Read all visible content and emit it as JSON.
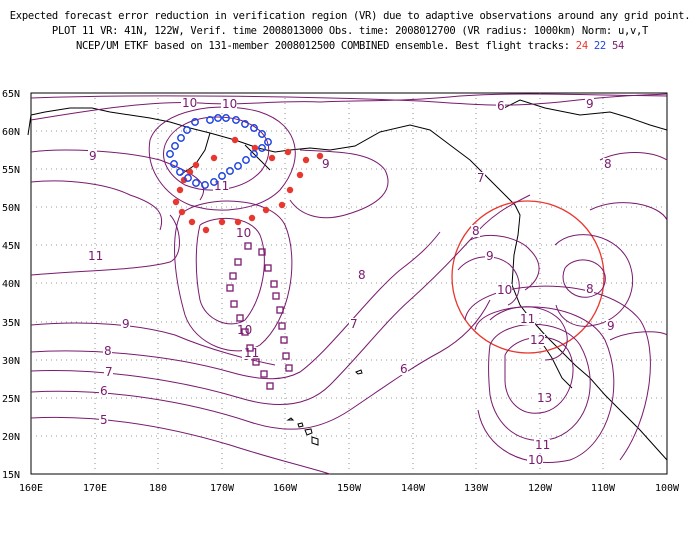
{
  "header": {
    "line1": "Expected forecast error reduction in verification region (VR) due to adaptive observations around any grid point.",
    "line2": "PLOT 11 VR: 41N, 122W, Verif. time 2008013000 Obs. time: 2008012700 (VR radius: 1000km) Norm: u,v,T",
    "line3_prefix": "NCEP/UM ETKF based on 131-member 2008012500 COMBINED ensemble.  Best flight tracks:",
    "track_red": "24",
    "track_blue": "22",
    "track_purple": "54"
  },
  "map": {
    "x_ticks": [
      "160E",
      "170E",
      "180",
      "170W",
      "160W",
      "150W",
      "140W",
      "130W",
      "120W",
      "110W",
      "100W"
    ],
    "y_ticks": [
      "65N",
      "60N",
      "55N",
      "50N",
      "45N",
      "40N",
      "35N",
      "30N",
      "25N",
      "20N",
      "15N"
    ],
    "contour_color": "#7a1a6e",
    "contour_labels": [
      "10",
      "9",
      "11",
      "10",
      "11",
      "10",
      "9",
      "9",
      "8",
      "7",
      "8",
      "7",
      "6",
      "6",
      "5",
      "6",
      "7",
      "8",
      "9",
      "10",
      "11",
      "12",
      "13",
      "11",
      "10",
      "9",
      "8",
      "9",
      "8",
      "9",
      "10",
      "11"
    ],
    "colors": {
      "red": "#e8372e",
      "blue": "#2145e0",
      "purple": "#7a1a6e"
    }
  }
}
